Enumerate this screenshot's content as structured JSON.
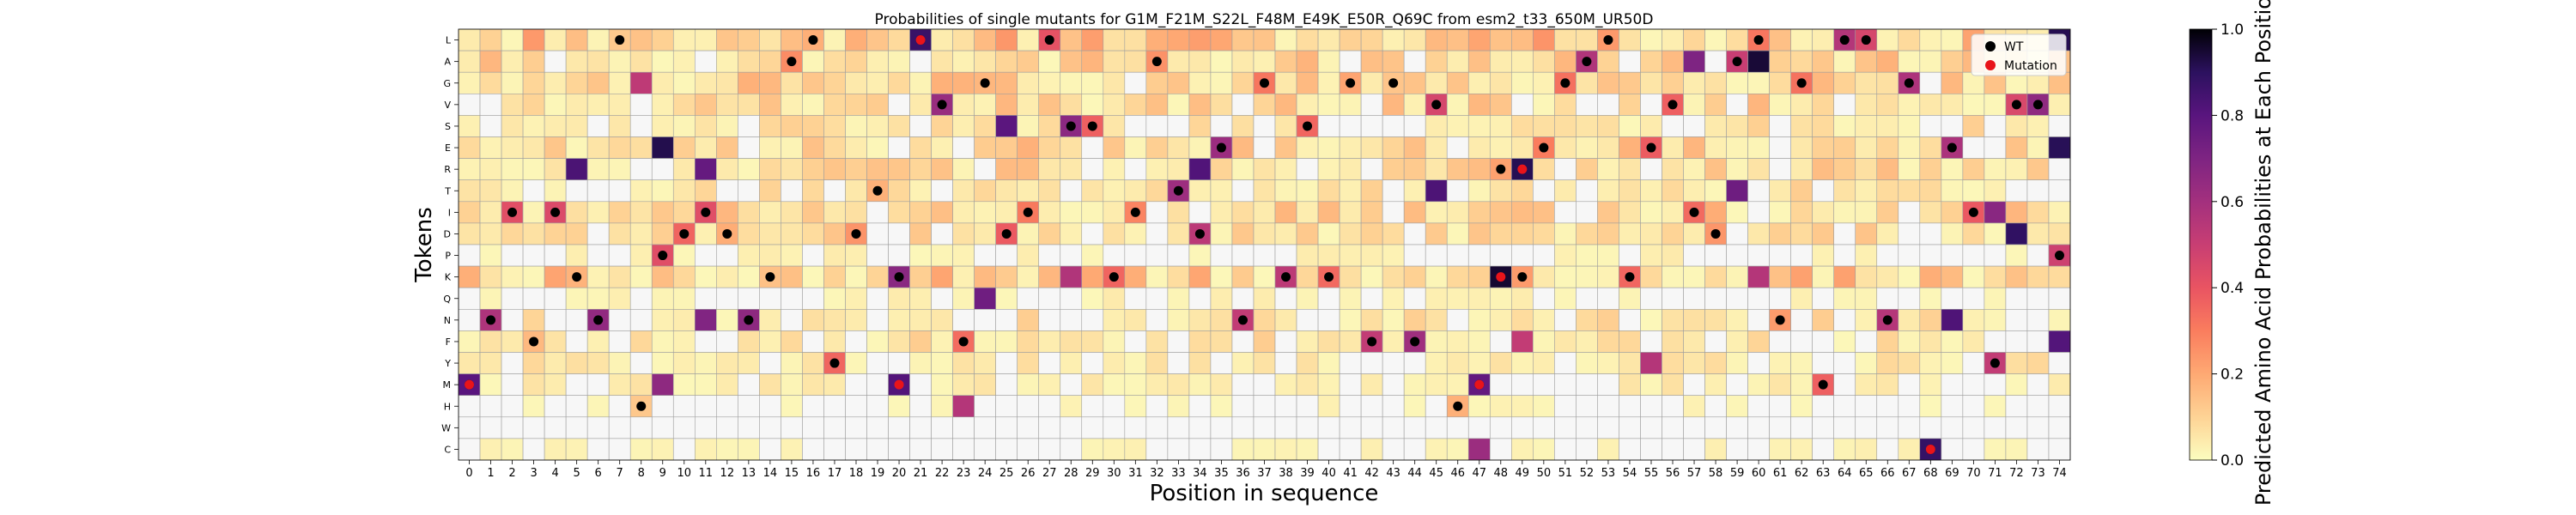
{
  "chart_data": {
    "type": "heatmap",
    "title": "Probabilities of single mutants for G1M_F21M_S22L_F48M_E49K_E50R_Q69C from esm2_t33_650M_UR50D",
    "xlabel": "Position in sequence",
    "ylabel": "Tokens",
    "colorbar_label": "Predicted Amino Acid Probabilities at Each Position",
    "colorbar_ticks": [
      "0.0",
      "0.2",
      "0.4",
      "0.6",
      "0.8",
      "1.0"
    ],
    "vmin": 0,
    "vmax": 1,
    "colormap": "magma_r",
    "tokens": [
      "L",
      "A",
      "G",
      "V",
      "S",
      "E",
      "R",
      "T",
      "I",
      "D",
      "P",
      "K",
      "Q",
      "N",
      "F",
      "Y",
      "M",
      "H",
      "W",
      "C"
    ],
    "positions": [
      "0",
      "1",
      "2",
      "3",
      "4",
      "5",
      "6",
      "7",
      "8",
      "9",
      "10",
      "11",
      "12",
      "13",
      "14",
      "15",
      "16",
      "17",
      "18",
      "19",
      "20",
      "21",
      "22",
      "23",
      "24",
      "25",
      "26",
      "27",
      "28",
      "29",
      "30",
      "31",
      "32",
      "33",
      "34",
      "35",
      "36",
      "37",
      "38",
      "39",
      "40",
      "41",
      "42",
      "43",
      "44",
      "45",
      "46",
      "47",
      "48",
      "49",
      "50",
      "51",
      "52",
      "53",
      "54",
      "55",
      "56",
      "57",
      "58",
      "59",
      "60",
      "61",
      "62",
      "63",
      "64",
      "65",
      "66",
      "67",
      "68",
      "69",
      "70",
      "71",
      "72",
      "73",
      "74"
    ],
    "wt": [
      "M",
      "N",
      "I",
      "F",
      "I",
      "K",
      "N",
      "L",
      "H",
      "P",
      "D",
      "I",
      "D",
      "N",
      "K",
      "A",
      "L",
      "Y",
      "D",
      "T",
      "K",
      "L",
      "V",
      "F",
      "G",
      "D",
      "I",
      "L",
      "S",
      "S",
      "K",
      "I",
      "A",
      "T",
      "D",
      "E",
      "N",
      "G",
      "K",
      "S",
      "K",
      "G",
      "F",
      "G",
      "F",
      "V",
      "H",
      "M",
      "R",
      "K",
      "E",
      "G",
      "A",
      "L",
      "K",
      "E",
      "V",
      "I",
      "D",
      "A",
      "L",
      "N",
      "G",
      "M",
      "L",
      "L",
      "N",
      "G",
      "C",
      "E",
      "I",
      "Y",
      "V",
      "V",
      "P"
    ],
    "mutations": [
      {
        "position": 0,
        "token": "M"
      },
      {
        "position": 20,
        "token": "M"
      },
      {
        "position": 21,
        "token": "L"
      },
      {
        "position": 47,
        "token": "M"
      },
      {
        "position": 48,
        "token": "K"
      },
      {
        "position": 49,
        "token": "R"
      },
      {
        "position": 68,
        "token": "C"
      }
    ],
    "legend": {
      "position": "top-right",
      "entries": [
        {
          "label": "WT",
          "color": "#000000"
        },
        {
          "label": "Mutation",
          "color": "#e8141a"
        }
      ]
    },
    "grid": true
  }
}
